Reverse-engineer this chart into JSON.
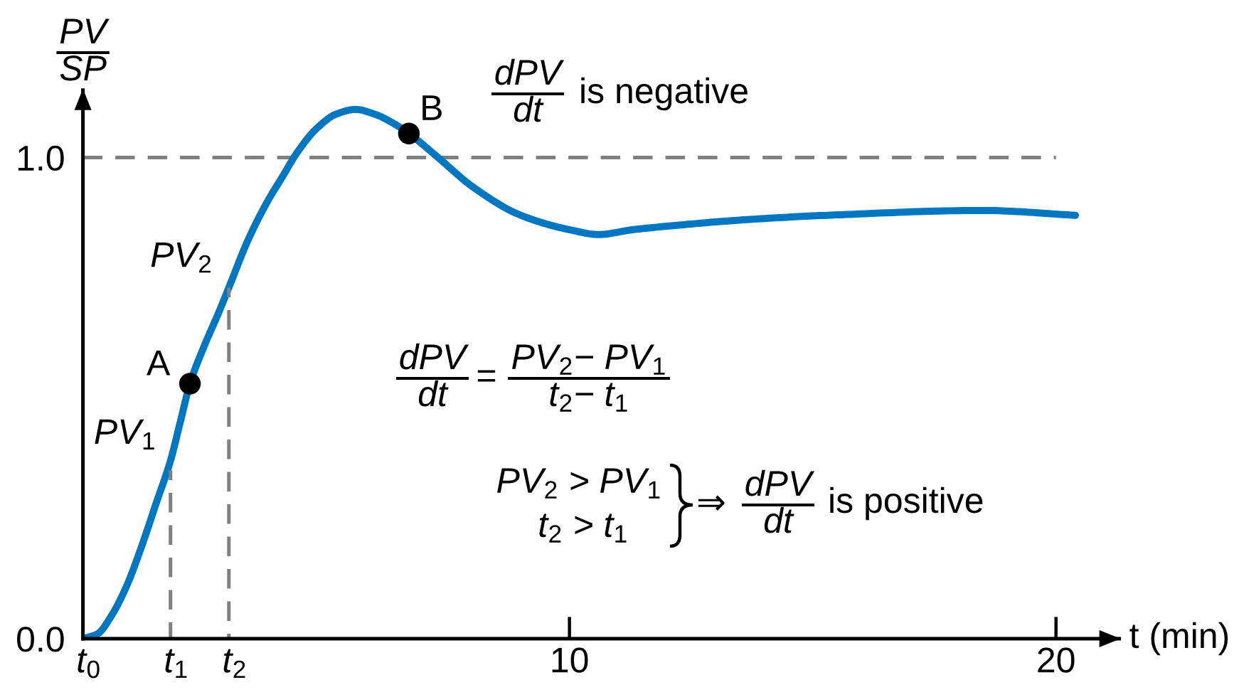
{
  "chart_data": {
    "type": "line",
    "ylabel": "PV\nSP",
    "xlabel": "t (min)",
    "xlim": [
      0,
      21.3
    ],
    "ylim": [
      0,
      1.14
    ],
    "xticks": [
      10,
      20
    ],
    "yticks": [
      {
        "value": 0,
        "label": "0.0"
      },
      {
        "value": 1,
        "label": "1.0"
      }
    ],
    "grid": false,
    "marker": "none",
    "series": [
      {
        "color": "#0077c0",
        "x": [
          0,
          0.3,
          0.6,
          0.9,
          1.2,
          1.5,
          1.8,
          2.0,
          2.2,
          2.5,
          2.8,
          3.0,
          3.4,
          3.8,
          4.1,
          4.4,
          4.8,
          5.2,
          5.6,
          6.0,
          6.4,
          6.7,
          7.3,
          8.0,
          9.0,
          10.0,
          10.6,
          11.3,
          12.3,
          13.5,
          15.3,
          18.5,
          20.4
        ],
        "values": [
          0,
          0.01,
          0.05,
          0.11,
          0.19,
          0.28,
          0.37,
          0.45,
          0.53,
          0.61,
          0.68,
          0.73,
          0.83,
          0.91,
          0.96,
          1.01,
          1.06,
          1.09,
          1.1,
          1.09,
          1.07,
          1.05,
          1.0,
          0.94,
          0.88,
          0.85,
          0.84,
          0.85,
          0.86,
          0.87,
          0.88,
          0.89,
          0.88
        ]
      },
      {
        "type": "line",
        "color": "#808080",
        "line_style": "dashed",
        "x": [
          1.8,
          1.8
        ],
        "values": [
          0,
          0.35
        ]
      },
      {
        "type": "line",
        "color": "#808080",
        "line_style": "dashed",
        "x": [
          3.0,
          3.0
        ],
        "values": [
          0,
          0.73
        ]
      },
      {
        "type": "scatter",
        "color": "#000000",
        "marker": "circle",
        "x": [
          2.2,
          6.7
        ],
        "values": [
          0.53,
          1.05
        ]
      }
    ],
    "ref_lines": [
      {
        "axis": "y",
        "value": 1.0,
        "color": "#808080",
        "line_style": "dashed"
      }
    ],
    "annotations": [
      "dPV\ndt",
      "is negative",
      "dPV\ndt",
      "=",
      "PV$_{2}$− PV$_{1}$\nt$_{2}$− t$_{1}$",
      "PV$_{2}$ > PV$_{1}$",
      "t$_{2}$ > t$_{1}$",
      "⇒",
      "dPV\ndt",
      "is positive",
      {
        "text": "A",
        "x": 2.2,
        "y": 0.53
      },
      {
        "text": "B",
        "x": 6.7,
        "y": 1.05
      },
      {
        "text": "PV$_{1}$",
        "x": 1.8,
        "y": 0.35
      },
      {
        "text": "PV$_{2}$",
        "x": 3.0,
        "y": 0.73
      },
      {
        "text": "t$_{0}$",
        "x": 0,
        "y": 0
      },
      {
        "text": "t$_{1}$",
        "x": 1.8,
        "y": 0
      },
      {
        "text": "t$_{2}$",
        "x": 3.0,
        "y": 0
      }
    ]
  }
}
